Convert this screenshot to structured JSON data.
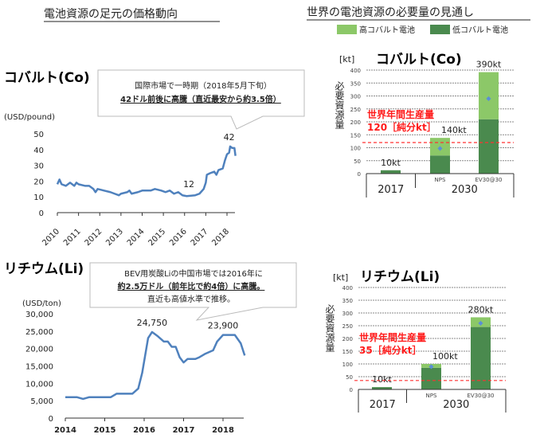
{
  "headings": {
    "left": "電池資源の足元の価格動向",
    "right": "世界の電池資源の必要量の見通し"
  },
  "legend": {
    "high": "高コバルト電池",
    "low": "低コバルト電池",
    "high_color": "#8cc868",
    "low_color": "#4a8a4e"
  },
  "callouts": {
    "cobalt": {
      "line1": "国際市場で一時期（2018年5月下旬）",
      "line2": "42ドル前後に高騰（直近最安から約3.5倍）"
    },
    "lithium": {
      "line1": "BEV用炭酸Liの中国市場では2016年に",
      "line2": "約2.5万ドル（前年比で約4倍）に高騰。",
      "line3": "直近も高値水準で推移。"
    }
  },
  "chart_data": [
    {
      "type": "line",
      "title": "コバルト(Co)",
      "ylabel": "(USD/pound)",
      "ylim": [
        0,
        50
      ],
      "yticks": [
        "0",
        "10",
        "20",
        "30",
        "40",
        "50"
      ],
      "xticks": [
        "2010",
        "2011",
        "2012",
        "2013",
        "2014",
        "2015",
        "2016",
        "2017",
        "2018"
      ],
      "color": "#4f81bd",
      "annotations": [
        {
          "label": "12",
          "x": 2016.2,
          "y": 12
        },
        {
          "label": "42",
          "x": 2018.1,
          "y": 42
        }
      ],
      "x": [
        2010.0,
        2010.1,
        2010.2,
        2010.4,
        2010.6,
        2010.8,
        2010.9,
        2011.0,
        2011.3,
        2011.5,
        2011.7,
        2011.8,
        2011.9,
        2012.2,
        2012.5,
        2012.7,
        2012.9,
        2013.0,
        2013.3,
        2013.4,
        2013.5,
        2013.8,
        2014.0,
        2014.4,
        2014.6,
        2014.9,
        2015.1,
        2015.3,
        2015.5,
        2015.7,
        2015.9,
        2016.1,
        2016.5,
        2016.7,
        2016.9,
        2017.0,
        2017.05,
        2017.2,
        2017.4,
        2017.5,
        2017.6,
        2017.8,
        2017.9,
        2018.0,
        2018.1,
        2018.15,
        2018.25,
        2018.35,
        2018.4
      ],
      "y": [
        18,
        21,
        18,
        17,
        19,
        17,
        19,
        18,
        17,
        17,
        15,
        13,
        15,
        14,
        13,
        12,
        11,
        12,
        13,
        14,
        12,
        13,
        14,
        14,
        15,
        14,
        13,
        14,
        12,
        13,
        11,
        10.5,
        11,
        12,
        15,
        19,
        24,
        25,
        26,
        24,
        27,
        28,
        33,
        37,
        38,
        42,
        41,
        41,
        36
      ]
    },
    {
      "type": "line",
      "title": "リチウム(Li)",
      "ylabel": "(USD/ton)",
      "ylim": [
        0,
        30000
      ],
      "yticks": [
        "0",
        "5,000",
        "10,000",
        "15,000",
        "20,000",
        "25,000",
        "30,000"
      ],
      "xticks": [
        "2014",
        "2015",
        "2016",
        "2017",
        "2018"
      ],
      "color": "#4f81bd",
      "annotations": [
        {
          "label": "24,750",
          "x": 2016.2,
          "y": 24750
        },
        {
          "label": "23,900",
          "x": 2018.0,
          "y": 23900
        }
      ],
      "x": [
        2014.0,
        2014.3,
        2014.45,
        2014.6,
        2015.0,
        2015.15,
        2015.3,
        2015.7,
        2015.85,
        2015.95,
        2016.1,
        2016.2,
        2016.35,
        2016.5,
        2016.6,
        2016.7,
        2016.8,
        2016.9,
        2017.0,
        2017.1,
        2017.3,
        2017.4,
        2017.55,
        2017.75,
        2017.85,
        2018.0,
        2018.3,
        2018.45,
        2018.55
      ],
      "y": [
        6000,
        6000,
        5500,
        6000,
        6000,
        6000,
        7000,
        7000,
        8500,
        13000,
        23000,
        24750,
        23500,
        22000,
        22000,
        20500,
        20500,
        17500,
        16000,
        17000,
        17000,
        17500,
        18500,
        19500,
        22000,
        23900,
        23900,
        21500,
        18000
      ]
    },
    {
      "type": "bar",
      "stacked": true,
      "title": "コバルト(Co)",
      "unit": "[kt]",
      "ylabel": "必要資源量",
      "ylim": [
        0,
        400
      ],
      "yticks": [
        "0",
        "50",
        "100",
        "150",
        "200",
        "250",
        "300",
        "350",
        "400"
      ],
      "categories": [
        "",
        "NPS",
        "EV30@30"
      ],
      "groups": [
        "2017",
        "2030"
      ],
      "series": [
        {
          "name": "低コバルト電池",
          "values": [
            13,
            70,
            210
          ]
        },
        {
          "name": "高コバルト電池",
          "values": [
            0,
            68,
            182
          ]
        }
      ],
      "markers": [
        null,
        100,
        293
      ],
      "totals": [
        "10kt",
        "140kt",
        "390kt"
      ],
      "reference": {
        "value": 120,
        "label1": "世界年間生産量",
        "label2": "120［純分kt］"
      }
    },
    {
      "type": "bar",
      "stacked": true,
      "title": "リチウム(Li)",
      "unit": "[kt]",
      "ylabel": "必要資源量",
      "ylim": [
        0,
        400
      ],
      "yticks": [
        "0",
        "50",
        "100",
        "150",
        "200",
        "250",
        "300",
        "350",
        "400"
      ],
      "categories": [
        "",
        "NPS",
        "EV30@30"
      ],
      "groups": [
        "2017",
        "2030"
      ],
      "series": [
        {
          "name": "低コバルト電池",
          "values": [
            9,
            85,
            245
          ]
        },
        {
          "name": "高コバルト電池",
          "values": [
            0,
            15,
            38
          ]
        }
      ],
      "markers": [
        null,
        92,
        263
      ],
      "totals": [
        "10kt",
        "100kt",
        "280kt"
      ],
      "reference": {
        "value": 35,
        "label1": "世界年間生産量",
        "label2": "35［純分kt］"
      }
    }
  ]
}
